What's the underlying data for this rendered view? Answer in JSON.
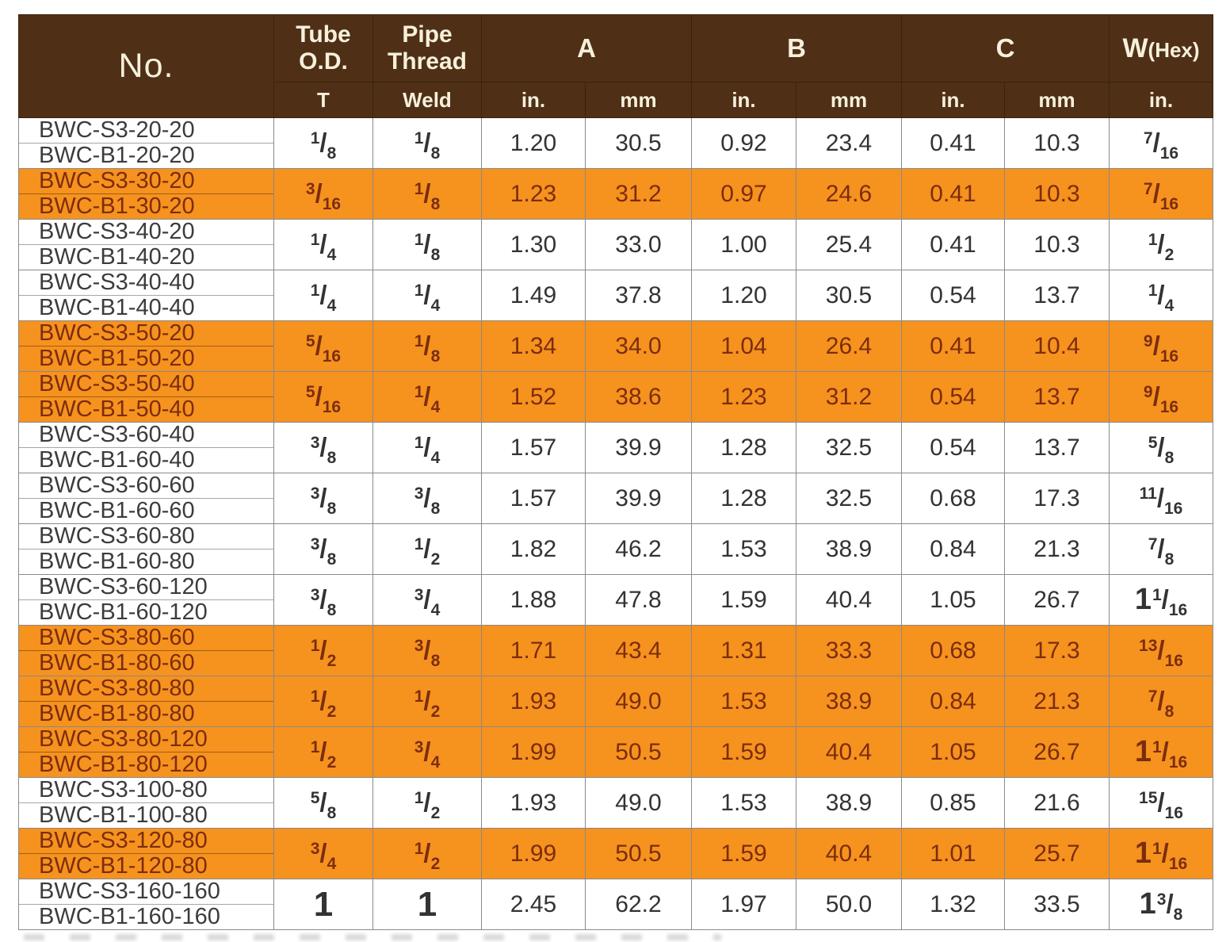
{
  "table": {
    "header": {
      "no": "No.",
      "tube_line1": "Tube",
      "tube_line2": "O.D.",
      "tube_sub": "T",
      "pipe_line1": "Pipe",
      "pipe_line2": "Thread",
      "pipe_sub": "Weld",
      "a": "A",
      "b": "B",
      "c": "C",
      "w": "W",
      "w_suffix": "(Hex)",
      "in_label": "in.",
      "mm_label": "mm"
    },
    "colors": {
      "header_bg": "#4F3016",
      "header_text": "#F6F0DC",
      "highlight_bg": "#F6921E",
      "highlight_text": "#7B2D0E",
      "row_text": "#333333",
      "border": "#8a8a8a"
    },
    "rows": [
      {
        "no_top": "BWC-S3-20-20",
        "no_bottom": "BWC-B1-20-20",
        "highlight": false,
        "tube": {
          "num": "1",
          "den": "8"
        },
        "weld": {
          "num": "1",
          "den": "8"
        },
        "a_in": "1.20",
        "a_mm": "30.5",
        "b_in": "0.92",
        "b_mm": "23.4",
        "c_in": "0.41",
        "c_mm": "10.3",
        "w_hex": {
          "num": "7",
          "den": "16"
        }
      },
      {
        "no_top": "BWC-S3-30-20",
        "no_bottom": "BWC-B1-30-20",
        "highlight": true,
        "tube": {
          "num": "3",
          "den": "16"
        },
        "weld": {
          "num": "1",
          "den": "8"
        },
        "a_in": "1.23",
        "a_mm": "31.2",
        "b_in": "0.97",
        "b_mm": "24.6",
        "c_in": "0.41",
        "c_mm": "10.3",
        "w_hex": {
          "num": "7",
          "den": "16"
        }
      },
      {
        "no_top": "BWC-S3-40-20",
        "no_bottom": "BWC-B1-40-20",
        "highlight": false,
        "tube": {
          "num": "1",
          "den": "4"
        },
        "weld": {
          "num": "1",
          "den": "8"
        },
        "a_in": "1.30",
        "a_mm": "33.0",
        "b_in": "1.00",
        "b_mm": "25.4",
        "c_in": "0.41",
        "c_mm": "10.3",
        "w_hex": {
          "num": "1",
          "den": "2"
        }
      },
      {
        "no_top": "BWC-S3-40-40",
        "no_bottom": "BWC-B1-40-40",
        "highlight": false,
        "tube": {
          "num": "1",
          "den": "4"
        },
        "weld": {
          "num": "1",
          "den": "4"
        },
        "a_in": "1.49",
        "a_mm": "37.8",
        "b_in": "1.20",
        "b_mm": "30.5",
        "c_in": "0.54",
        "c_mm": "13.7",
        "w_hex": {
          "num": "1",
          "den": "4"
        }
      },
      {
        "no_top": "BWC-S3-50-20",
        "no_bottom": "BWC-B1-50-20",
        "highlight": true,
        "tube": {
          "num": "5",
          "den": "16"
        },
        "weld": {
          "num": "1",
          "den": "8"
        },
        "a_in": "1.34",
        "a_mm": "34.0",
        "b_in": "1.04",
        "b_mm": "26.4",
        "c_in": "0.41",
        "c_mm": "10.4",
        "w_hex": {
          "num": "9",
          "den": "16"
        }
      },
      {
        "no_top": "BWC-S3-50-40",
        "no_bottom": "BWC-B1-50-40",
        "highlight": true,
        "tube": {
          "num": "5",
          "den": "16"
        },
        "weld": {
          "num": "1",
          "den": "4"
        },
        "a_in": "1.52",
        "a_mm": "38.6",
        "b_in": "1.23",
        "b_mm": "31.2",
        "c_in": "0.54",
        "c_mm": "13.7",
        "w_hex": {
          "num": "9",
          "den": "16"
        }
      },
      {
        "no_top": "BWC-S3-60-40",
        "no_bottom": "BWC-B1-60-40",
        "highlight": false,
        "tube": {
          "num": "3",
          "den": "8"
        },
        "weld": {
          "num": "1",
          "den": "4"
        },
        "a_in": "1.57",
        "a_mm": "39.9",
        "b_in": "1.28",
        "b_mm": "32.5",
        "c_in": "0.54",
        "c_mm": "13.7",
        "w_hex": {
          "num": "5",
          "den": "8"
        }
      },
      {
        "no_top": "BWC-S3-60-60",
        "no_bottom": "BWC-B1-60-60",
        "highlight": false,
        "tube": {
          "num": "3",
          "den": "8"
        },
        "weld": {
          "num": "3",
          "den": "8"
        },
        "a_in": "1.57",
        "a_mm": "39.9",
        "b_in": "1.28",
        "b_mm": "32.5",
        "c_in": "0.68",
        "c_mm": "17.3",
        "w_hex": {
          "num": "11",
          "den": "16"
        }
      },
      {
        "no_top": "BWC-S3-60-80",
        "no_bottom": "BWC-B1-60-80",
        "highlight": false,
        "tube": {
          "num": "3",
          "den": "8"
        },
        "weld": {
          "num": "1",
          "den": "2"
        },
        "a_in": "1.82",
        "a_mm": "46.2",
        "b_in": "1.53",
        "b_mm": "38.9",
        "c_in": "0.84",
        "c_mm": "21.3",
        "w_hex": {
          "num": "7",
          "den": "8"
        }
      },
      {
        "no_top": "BWC-S3-60-120",
        "no_bottom": "BWC-B1-60-120",
        "highlight": false,
        "tube": {
          "num": "3",
          "den": "8"
        },
        "weld": {
          "num": "3",
          "den": "4"
        },
        "a_in": "1.88",
        "a_mm": "47.8",
        "b_in": "1.59",
        "b_mm": "40.4",
        "c_in": "1.05",
        "c_mm": "26.7",
        "w_hex": {
          "whole": "1",
          "num": "1",
          "den": "16"
        }
      },
      {
        "no_top": "BWC-S3-80-60",
        "no_bottom": "BWC-B1-80-60",
        "highlight": true,
        "tube": {
          "num": "1",
          "den": "2"
        },
        "weld": {
          "num": "3",
          "den": "8"
        },
        "a_in": "1.71",
        "a_mm": "43.4",
        "b_in": "1.31",
        "b_mm": "33.3",
        "c_in": "0.68",
        "c_mm": "17.3",
        "w_hex": {
          "num": "13",
          "den": "16"
        }
      },
      {
        "no_top": "BWC-S3-80-80",
        "no_bottom": "BWC-B1-80-80",
        "highlight": true,
        "tube": {
          "num": "1",
          "den": "2"
        },
        "weld": {
          "num": "1",
          "den": "2"
        },
        "a_in": "1.93",
        "a_mm": "49.0",
        "b_in": "1.53",
        "b_mm": "38.9",
        "c_in": "0.84",
        "c_mm": "21.3",
        "w_hex": {
          "num": "7",
          "den": "8"
        }
      },
      {
        "no_top": "BWC-S3-80-120",
        "no_bottom": "BWC-B1-80-120",
        "highlight": true,
        "tube": {
          "num": "1",
          "den": "2"
        },
        "weld": {
          "num": "3",
          "den": "4"
        },
        "a_in": "1.99",
        "a_mm": "50.5",
        "b_in": "1.59",
        "b_mm": "40.4",
        "c_in": "1.05",
        "c_mm": "26.7",
        "w_hex": {
          "whole": "1",
          "num": "1",
          "den": "16"
        }
      },
      {
        "no_top": "BWC-S3-100-80",
        "no_bottom": "BWC-B1-100-80",
        "highlight": false,
        "tube": {
          "num": "5",
          "den": "8"
        },
        "weld": {
          "num": "1",
          "den": "2"
        },
        "a_in": "1.93",
        "a_mm": "49.0",
        "b_in": "1.53",
        "b_mm": "38.9",
        "c_in": "0.85",
        "c_mm": "21.6",
        "w_hex": {
          "num": "15",
          "den": "16"
        }
      },
      {
        "no_top": "BWC-S3-120-80",
        "no_bottom": "BWC-B1-120-80",
        "highlight": true,
        "tube": {
          "num": "3",
          "den": "4"
        },
        "weld": {
          "num": "1",
          "den": "2"
        },
        "a_in": "1.99",
        "a_mm": "50.5",
        "b_in": "1.59",
        "b_mm": "40.4",
        "c_in": "1.01",
        "c_mm": "25.7",
        "w_hex": {
          "whole": "1",
          "num": "1",
          "den": "16"
        }
      },
      {
        "no_top": "BWC-S3-160-160",
        "no_bottom": "BWC-B1-160-160",
        "highlight": false,
        "tube": {
          "whole": "1"
        },
        "weld": {
          "whole": "1"
        },
        "a_in": "2.45",
        "a_mm": "62.2",
        "b_in": "1.97",
        "b_mm": "50.0",
        "c_in": "1.32",
        "c_mm": "33.5",
        "w_hex": {
          "whole": "1",
          "num": "3",
          "den": "8"
        }
      }
    ]
  }
}
